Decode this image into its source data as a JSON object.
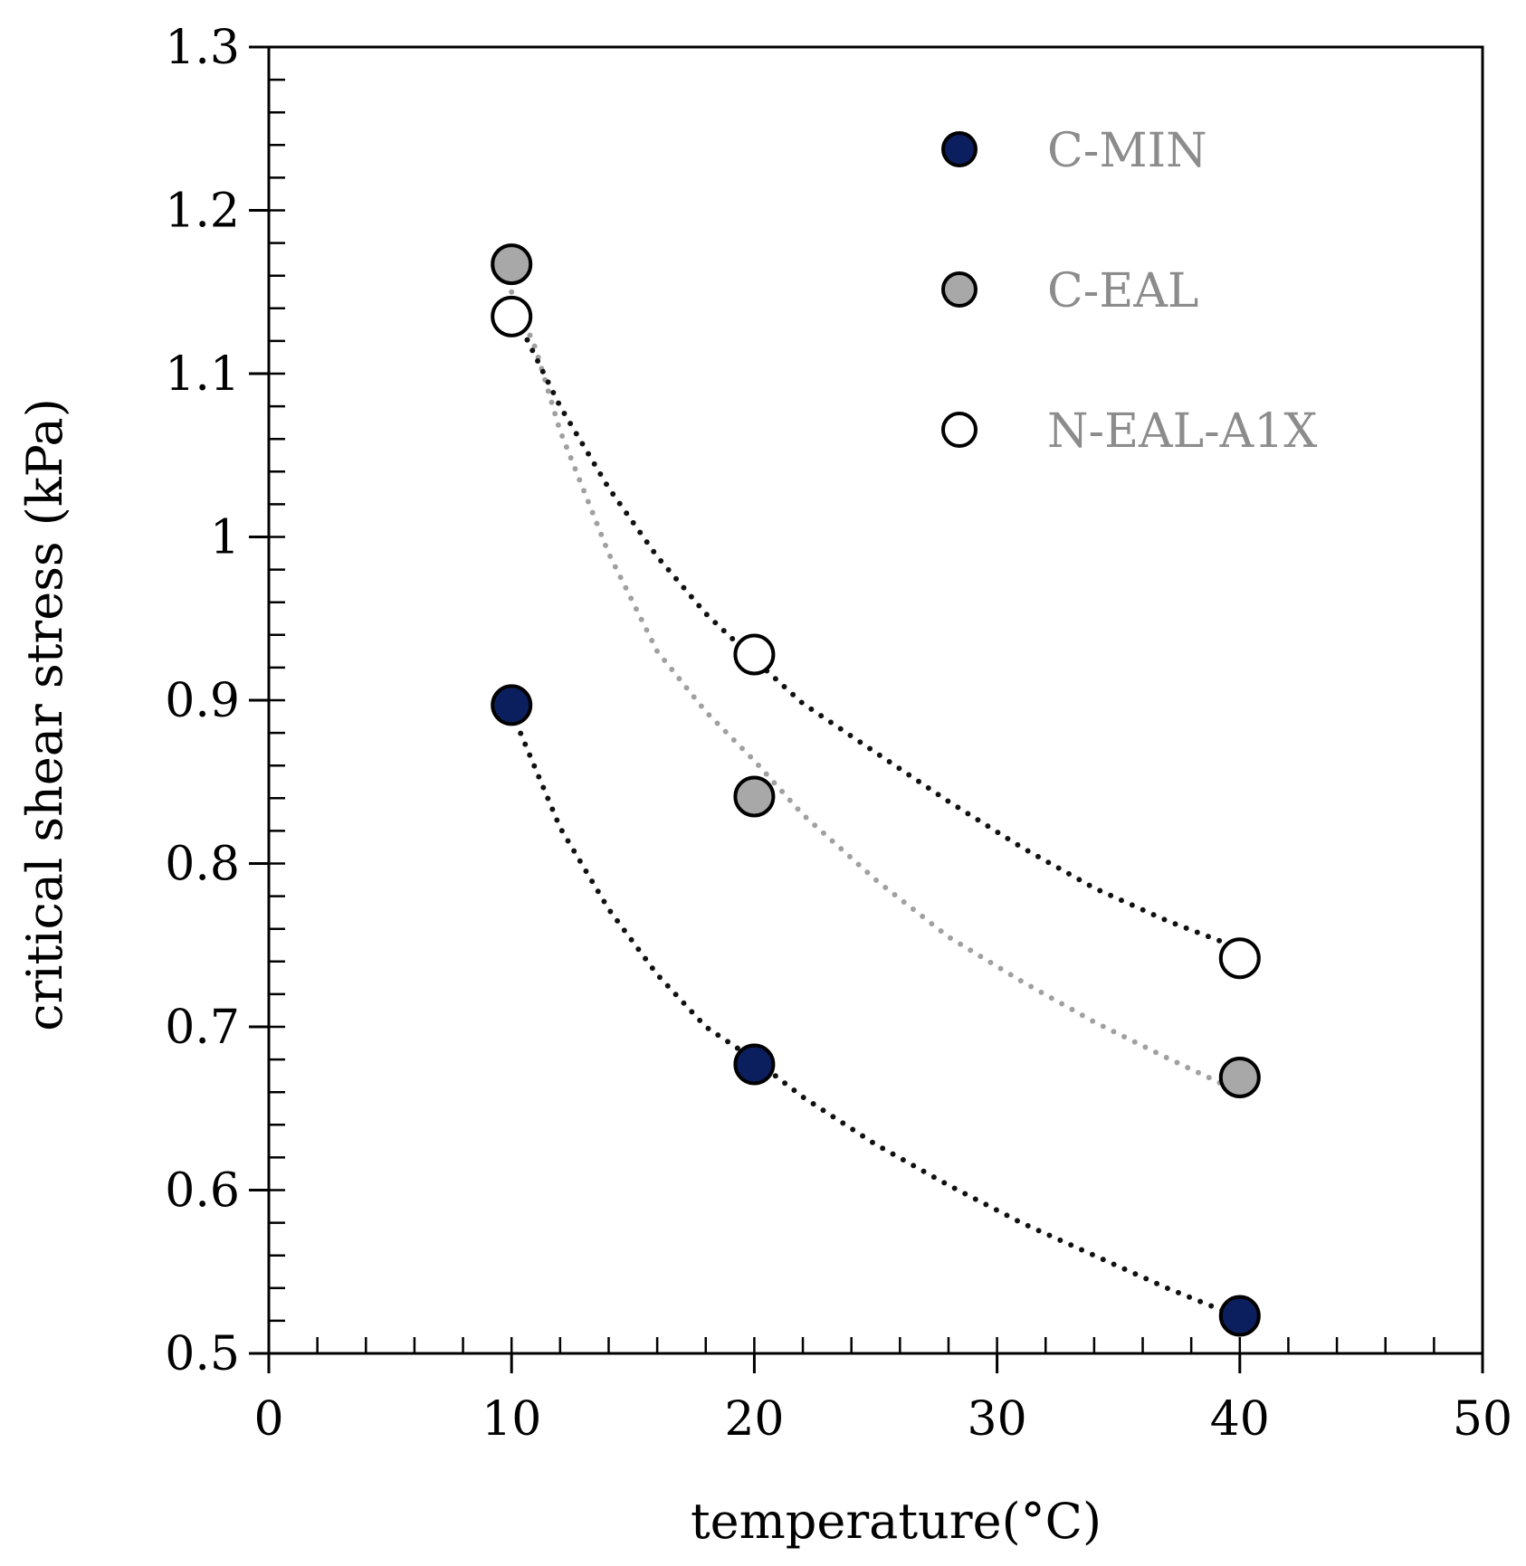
{
  "chart_data": {
    "type": "scatter",
    "title": "",
    "xlabel": "temperature(°C)",
    "ylabel": "critical shear stress  (kPa)",
    "xlim": [
      0,
      50
    ],
    "ylim": [
      0.5,
      1.3
    ],
    "x_major_ticks": [
      0,
      10,
      20,
      30,
      40,
      50
    ],
    "x_tick_labels": [
      "0",
      "10",
      "20",
      "30",
      "40",
      "50"
    ],
    "x_minor_step": 2,
    "y_major_ticks": [
      0.5,
      0.6,
      0.7,
      0.8,
      0.9,
      1.0,
      1.1,
      1.2,
      1.3
    ],
    "y_tick_labels": [
      "0.5",
      "0.6",
      "0.7",
      "0.8",
      "0.9",
      "1",
      "1.1",
      "1.2",
      "1.3"
    ],
    "y_minor_step": 0.02,
    "grid": false,
    "legend_position": "top-right",
    "legend_text_color": "#8c8c8c",
    "series": [
      {
        "name": "C-MIN",
        "marker_fill": "#0b1f5e",
        "marker_stroke": "#000000",
        "trend_color": "#111111",
        "x": [
          10,
          20,
          40
        ],
        "y": [
          0.897,
          0.677,
          0.523
        ],
        "trend": [
          [
            10,
            0.893
          ],
          [
            12,
            0.822
          ],
          [
            14,
            0.772
          ],
          [
            16,
            0.732
          ],
          [
            18,
            0.7
          ],
          [
            20,
            0.68
          ],
          [
            22,
            0.657
          ],
          [
            25,
            0.628
          ],
          [
            28,
            0.603
          ],
          [
            31,
            0.58
          ],
          [
            34,
            0.56
          ],
          [
            37,
            0.54
          ],
          [
            40,
            0.522
          ]
        ]
      },
      {
        "name": "C-EAL",
        "marker_fill": "#a8a8a8",
        "marker_stroke": "#000000",
        "trend_color": "#a0a0a0",
        "x": [
          10,
          20,
          40
        ],
        "y": [
          1.167,
          0.841,
          0.669
        ],
        "trend": [
          [
            10,
            1.15
          ],
          [
            11,
            1.115
          ],
          [
            12,
            1.065
          ],
          [
            14,
            0.99
          ],
          [
            16,
            0.93
          ],
          [
            18,
            0.893
          ],
          [
            20,
            0.863
          ],
          [
            22,
            0.83
          ],
          [
            25,
            0.79
          ],
          [
            28,
            0.755
          ],
          [
            31,
            0.728
          ],
          [
            34,
            0.703
          ],
          [
            37,
            0.681
          ],
          [
            40,
            0.66
          ]
        ]
      },
      {
        "name": "N-EAL-A1X",
        "marker_fill": "#ffffff",
        "marker_stroke": "#000000",
        "trend_color": "#111111",
        "x": [
          10,
          20,
          40
        ],
        "y": [
          1.135,
          0.928,
          0.742
        ],
        "trend": [
          [
            10,
            1.14
          ],
          [
            12,
            1.08
          ],
          [
            14,
            1.03
          ],
          [
            16,
            0.988
          ],
          [
            18,
            0.953
          ],
          [
            20,
            0.925
          ],
          [
            22,
            0.898
          ],
          [
            25,
            0.868
          ],
          [
            28,
            0.838
          ],
          [
            31,
            0.81
          ],
          [
            34,
            0.785
          ],
          [
            37,
            0.765
          ],
          [
            40,
            0.748
          ]
        ]
      }
    ]
  }
}
